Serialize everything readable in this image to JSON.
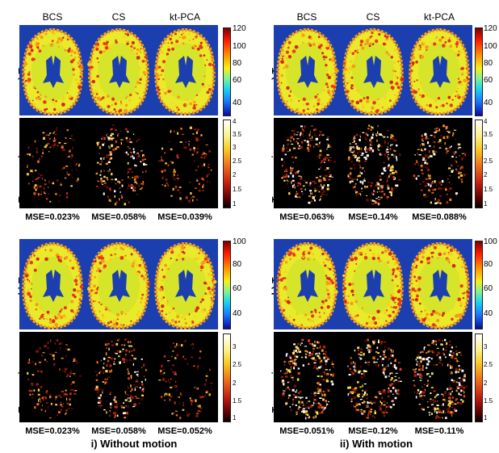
{
  "columns": [
    "BCS",
    "CS",
    "kt-PCA"
  ],
  "panels": [
    {
      "id": "a-left",
      "map_label_prefix": "a) T",
      "map_label_sub": "1",
      "map_label_suffix": "ρ",
      "err_label_prefix": "T",
      "err_label_sub": "1",
      "err_label_suffix": "ρ error images",
      "map_ticks": [
        "120",
        "100",
        "80",
        "60",
        "40"
      ],
      "err_ticks": [
        "4",
        "3.5",
        "3",
        "2.5",
        "2",
        "1.5",
        "1"
      ],
      "mse": [
        "MSE=0.023%",
        "MSE=0.058%",
        "MSE=0.039%"
      ]
    },
    {
      "id": "a-right",
      "map_label_prefix": "a) T",
      "map_label_sub": "1",
      "map_label_suffix": "ρ",
      "err_label_prefix": "T",
      "err_label_sub": "1",
      "err_label_suffix": "ρ error images",
      "map_ticks": [
        "120",
        "100",
        "80",
        "60",
        "40"
      ],
      "err_ticks": [
        "4",
        "3.5",
        "3",
        "2.5",
        "2",
        "1.5",
        "1"
      ],
      "mse": [
        "MSE=0.063%",
        "MSE=0.14%",
        "MSE=0.088%"
      ]
    },
    {
      "id": "b-left",
      "map_label_prefix": "b) T",
      "map_label_sub": "2",
      "map_label_suffix": "",
      "err_label_prefix": "T",
      "err_label_sub": "2",
      "err_label_suffix": " error images",
      "map_ticks": [
        "100",
        "80",
        "60",
        "40"
      ],
      "err_ticks": [
        "3",
        "2.5",
        "2",
        "1.5",
        "1"
      ],
      "mse": [
        "MSE=0.023%",
        "MSE=0.058%",
        "MSE=0.052%"
      ]
    },
    {
      "id": "b-right",
      "map_label_prefix": "b) T",
      "map_label_sub": "2",
      "map_label_suffix": "",
      "err_label_prefix": "T",
      "err_label_sub": "2",
      "err_label_suffix": " error images",
      "map_ticks": [
        "100",
        "80",
        "60",
        "40"
      ],
      "err_ticks": [
        "3",
        "2.5",
        "2",
        "1.5",
        "1"
      ],
      "mse": [
        "MSE=0.051%",
        "MSE=0.12%",
        "MSE=0.11%"
      ]
    }
  ],
  "captions": {
    "left": "i) Without motion",
    "right": "ii) With motion"
  },
  "colors": {
    "map_background": "#1c3fb0",
    "error_background": "#000000"
  }
}
